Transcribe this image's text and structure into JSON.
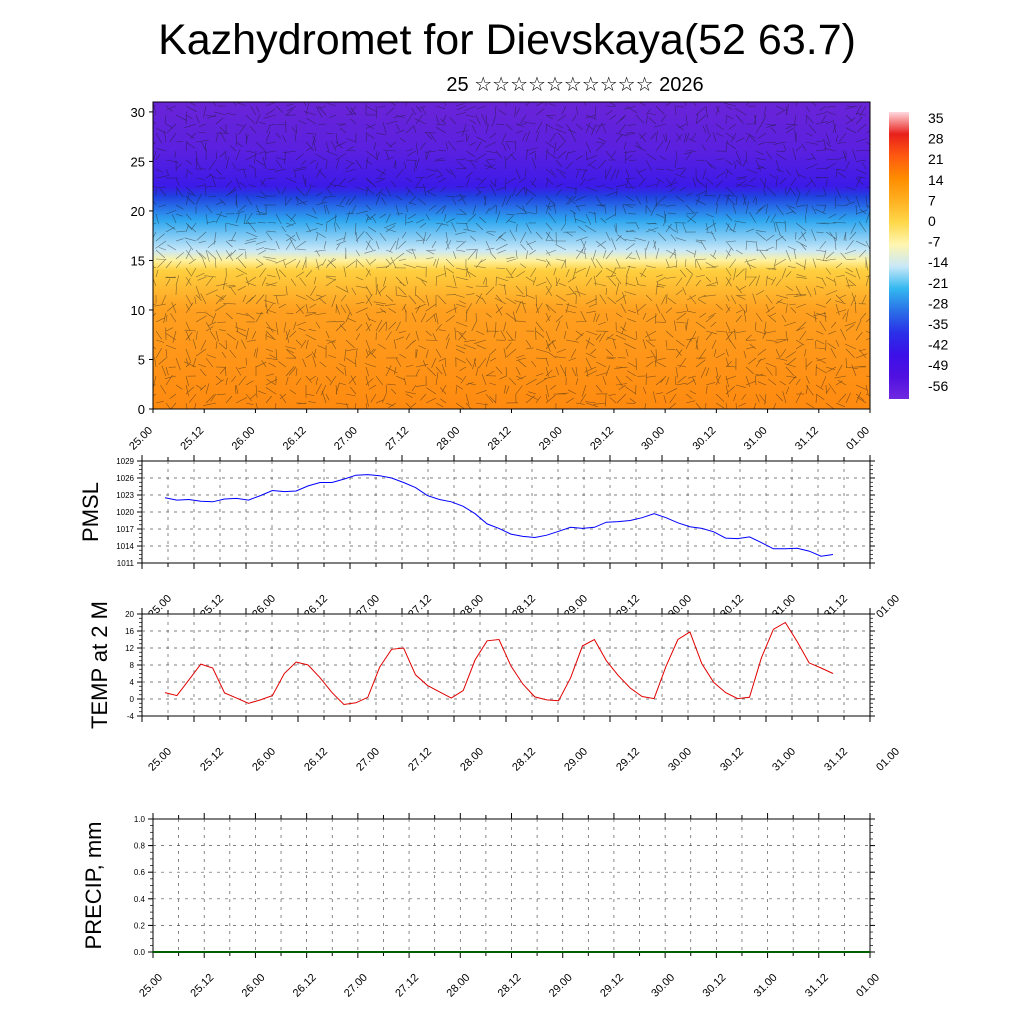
{
  "title": "Kazhydromet for Dievskaya(52 63.7)",
  "subtitle": "25 ☆☆☆☆☆☆☆☆☆☆ 2026",
  "chart_data": [
    {
      "type": "heatmap",
      "name": "cross-section",
      "x_ticks": [
        "25.00",
        "25.12",
        "26.00",
        "26.12",
        "27.00",
        "27.12",
        "28.00",
        "28.12",
        "29.00",
        "29.12",
        "30.00",
        "30.12",
        "31.00",
        "31.12",
        "01.00"
      ],
      "y_ticks": [
        "0",
        "5",
        "10",
        "15",
        "20",
        "25",
        "30"
      ],
      "ylim": [
        0,
        31
      ],
      "colorbar_labels": [
        "35",
        "28",
        "21",
        "14",
        "7",
        "0",
        "-7",
        "-14",
        "-21",
        "-28",
        "-35",
        "-42",
        "-49",
        "-56"
      ],
      "colorbar_colors": [
        "#ffd9de",
        "#e8201c",
        "#ff5a10",
        "#ff8c00",
        "#ffb020",
        "#ffd84a",
        "#fff6b0",
        "#c8e8f8",
        "#33b8f0",
        "#2a70e8",
        "#2a30e8",
        "#3c10e8",
        "#5010e0",
        "#7028e0"
      ],
      "levels": [
        {
          "h": 0,
          "color": "#ff8a10"
        },
        {
          "h": 10,
          "color": "#ffa020"
        },
        {
          "h": 14,
          "color": "#ffd040"
        },
        {
          "h": 15,
          "color": "#fff2a0"
        },
        {
          "h": 16,
          "color": "#c8e8f8"
        },
        {
          "h": 19,
          "color": "#30a8f0"
        },
        {
          "h": 21.5,
          "color": "#2040e0"
        },
        {
          "h": 22.5,
          "color": "#3c1ae8"
        },
        {
          "h": 26,
          "color": "#5a20e0"
        },
        {
          "h": 31,
          "color": "#6a24d8"
        }
      ]
    },
    {
      "type": "line",
      "ylabel": "PMSL",
      "x_ticks": [
        "25.00",
        "25.12",
        "26.00",
        "26.12",
        "27.00",
        "27.12",
        "28.00",
        "28.12",
        "29.00",
        "29.12",
        "30.00",
        "30.12",
        "31.00",
        "31.12",
        "01.00"
      ],
      "y_ticks": [
        "1011",
        "1014",
        "1017",
        "1020",
        "1023",
        "1026",
        "1029"
      ],
      "ylim": [
        1011,
        1029
      ],
      "color": "#0000ff",
      "values": [
        1022.5,
        1022.1,
        1022.2,
        1021.9,
        1021.8,
        1022.3,
        1022.4,
        1022.1,
        1022.9,
        1023.8,
        1023.6,
        1023.7,
        1024.6,
        1025.2,
        1025.2,
        1025.8,
        1026.5,
        1026.6,
        1026.4,
        1026.0,
        1025.2,
        1024.3,
        1022.9,
        1022.2,
        1021.8,
        1021.0,
        1019.7,
        1017.9,
        1017.1,
        1016.1,
        1015.7,
        1015.5,
        1015.9,
        1016.6,
        1017.3,
        1017.1,
        1017.3,
        1018.2,
        1018.3,
        1018.5,
        1019.0,
        1019.7,
        1019.0,
        1018.1,
        1017.4,
        1017.1,
        1016.5,
        1015.4,
        1015.3,
        1015.6,
        1014.6,
        1013.5,
        1013.5,
        1013.6,
        1013.1,
        1012.2,
        1012.5
      ]
    },
    {
      "type": "line",
      "ylabel": "TEMP at 2 M",
      "x_ticks": [
        "25.00",
        "25.12",
        "26.00",
        "26.12",
        "27.00",
        "27.12",
        "28.00",
        "28.12",
        "29.00",
        "29.12",
        "30.00",
        "30.12",
        "31.00",
        "31.12",
        "01.00"
      ],
      "y_ticks": [
        "-4",
        "0",
        "4",
        "8",
        "12",
        "16",
        "20"
      ],
      "ylim": [
        -4,
        20
      ],
      "color": "#e00000",
      "values": [
        1.5,
        0.8,
        4.5,
        8.2,
        7.3,
        1.4,
        0.2,
        -1.0,
        -0.2,
        0.8,
        6.0,
        8.7,
        8.0,
        5.0,
        1.5,
        -1.3,
        -0.9,
        0.4,
        7.5,
        11.7,
        12.0,
        5.7,
        3.2,
        1.7,
        0.2,
        2.0,
        9.2,
        13.7,
        14.0,
        7.8,
        3.5,
        0.5,
        -0.2,
        -0.4,
        5.0,
        12.5,
        14.0,
        9.0,
        5.5,
        2.6,
        0.6,
        0.1,
        7.7,
        14.0,
        15.8,
        8.3,
        3.9,
        1.5,
        0.1,
        0.4,
        9.7,
        16.4,
        18.0,
        13.5,
        8.5,
        7.3,
        6.0
      ]
    },
    {
      "type": "line",
      "ylabel": "PRECIP, mm",
      "x_ticks": [
        "25.00",
        "25.12",
        "26.00",
        "26.12",
        "27.00",
        "27.12",
        "28.00",
        "28.12",
        "29.00",
        "29.12",
        "30.00",
        "30.12",
        "31.00",
        "31.12",
        "01.00"
      ],
      "y_ticks": [
        "0.0",
        "0.2",
        "0.4",
        "0.6",
        "0.8",
        "1.0"
      ],
      "ylim": [
        0,
        1
      ],
      "color": "#006000",
      "values": [
        0,
        0
      ]
    }
  ]
}
